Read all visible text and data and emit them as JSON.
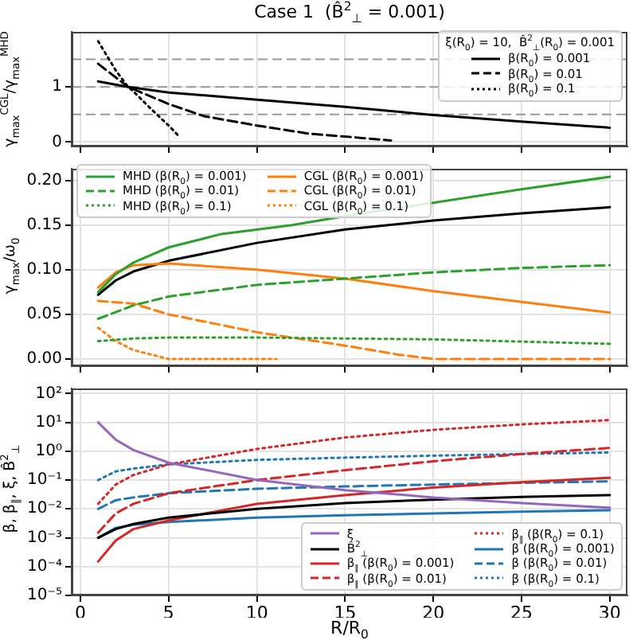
{
  "chart_data": [
    {
      "type": "line",
      "title": "Case 1  (B̂$^{2}$$_{⊥}$ = 0.001)",
      "ylabel": "γ$_{max}$$^{CGL}$/γ$_{max}$$^{MHD}$",
      "legend_title": "ξ(R$_{0}$) = 10,  B̂$^{2}$$_{⊥}$(R$_{0}$) = 0.001",
      "legend": "top right",
      "grid": true,
      "tick_labels": "y",
      "xlim": [
        -0.5,
        31
      ],
      "xticks": [
        0,
        5,
        10,
        15,
        20,
        25,
        30
      ],
      "ylim": [
        -0.08,
        2.0
      ],
      "yticks": [
        0,
        1
      ],
      "ref_lines": [
        {
          "axis": "y",
          "value": 0.5,
          "color": "#999999",
          "line_style": "dashed"
        },
        {
          "axis": "y",
          "value": 1,
          "color": "#999999",
          "line_style": "dashed"
        },
        {
          "axis": "y",
          "value": 1.5,
          "color": "#999999",
          "line_style": "dashed"
        }
      ],
      "series": [
        {
          "name": "β(R$_{0}$) = 0.001",
          "color": "#000000",
          "line_style": "solid",
          "x": [
            1,
            2.7,
            5,
            10,
            15,
            20,
            25,
            30
          ],
          "values": [
            1.1,
            1.0,
            0.9,
            0.77,
            0.64,
            0.49,
            0.37,
            0.26
          ]
        },
        {
          "name": "β(R$_{0}$) = 0.01",
          "color": "#000000",
          "line_style": "dashed",
          "x": [
            1,
            2.7,
            5,
            7,
            10,
            13,
            15,
            17.6
          ],
          "values": [
            1.42,
            1.0,
            0.69,
            0.47,
            0.3,
            0.15,
            0.1,
            0.03
          ]
        },
        {
          "name": "β(R$_{0}$) = 0.1",
          "color": "#000000",
          "line_style": "dotted",
          "x": [
            1,
            2,
            2.7,
            3,
            4,
            5,
            5.6
          ],
          "values": [
            1.83,
            1.3,
            1.0,
            0.92,
            0.6,
            0.3,
            0.1
          ]
        }
      ]
    },
    {
      "type": "line",
      "ylabel": "γ$_{max}$/ω$_{0}$",
      "legend": "top left",
      "grid": true,
      "tick_labels": "y",
      "xlim": [
        -0.5,
        31
      ],
      "xticks": [
        0,
        5,
        10,
        15,
        20,
        25,
        30
      ],
      "ylim": [
        -0.008,
        0.213
      ],
      "yticks": [
        {
          "value": 0,
          "label": "0.00"
        },
        {
          "value": 0.05,
          "label": "0.05"
        },
        {
          "value": 0.1,
          "label": "0.10"
        },
        {
          "value": 0.15,
          "label": "0.15"
        },
        {
          "value": 0.2,
          "label": "0.20"
        }
      ],
      "series": [
        {
          "name": "MHD (β(R$_{0}$) = 0.001)",
          "color": "#2ca02c",
          "line_style": "solid",
          "x": [
            1,
            2,
            3,
            5,
            8,
            12,
            15,
            20,
            25,
            30
          ],
          "values": [
            0.075,
            0.095,
            0.108,
            0.125,
            0.14,
            0.15,
            0.16,
            0.175,
            0.19,
            0.204
          ]
        },
        {
          "name": "MHD (β(R$_{0}$) = 0.01)",
          "color": "#2ca02c",
          "line_style": "dashed",
          "x": [
            1,
            3,
            5,
            10,
            15,
            20,
            25,
            30
          ],
          "values": [
            0.045,
            0.06,
            0.07,
            0.083,
            0.09,
            0.097,
            0.102,
            0.105
          ]
        },
        {
          "name": "MHD (β(R$_{0}$) = 0.1)",
          "color": "#2ca02c",
          "line_style": "dotted",
          "x": [
            1,
            3,
            5,
            10,
            20,
            30
          ],
          "values": [
            0.02,
            0.023,
            0.024,
            0.024,
            0.022,
            0.017
          ]
        },
        {
          "name": "CGL (β(R$_{0}$) = 0.001)",
          "color": "#ff7f0e",
          "line_style": "solid",
          "x": [
            1,
            2,
            3,
            5,
            10,
            15,
            20,
            25,
            30
          ],
          "values": [
            0.08,
            0.097,
            0.105,
            0.107,
            0.1,
            0.09,
            0.076,
            0.064,
            0.052
          ]
        },
        {
          "name": "CGL (β(R$_{0}$) = 0.01)",
          "color": "#ff7f0e",
          "line_style": "dashed",
          "x": [
            1,
            3,
            5,
            10,
            15,
            18,
            20,
            30
          ],
          "values": [
            0.065,
            0.062,
            0.05,
            0.03,
            0.015,
            0.005,
            0,
            0
          ]
        },
        {
          "name": "CGL (β(R$_{0}$) = 0.1)",
          "color": "#ff7f0e",
          "line_style": "dotted",
          "x": [
            1,
            2,
            3,
            5,
            11.1
          ],
          "values": [
            0.035,
            0.02,
            0.01,
            0,
            0
          ]
        },
        {
          "color": "#000000",
          "line_style": "solid",
          "x": [
            1,
            2,
            3,
            5,
            10,
            15,
            20,
            25,
            30
          ],
          "values": [
            0.072,
            0.088,
            0.098,
            0.11,
            0.13,
            0.145,
            0.155,
            0.163,
            0.17
          ]
        }
      ]
    },
    {
      "type": "line",
      "xlabel": "R/R$_{0}$",
      "ylabel": "β, β$_{∥}$, ξ, B̂$^{2}$$_{⊥}$",
      "legend": "bottom right",
      "grid": true,
      "log": "y",
      "xlim": [
        -0.5,
        31
      ],
      "xticks": [
        0,
        5,
        10,
        15,
        20,
        25,
        30
      ],
      "ylim": [
        1e-05,
        150
      ],
      "yticks": [
        {
          "value": 100,
          "label": "10²"
        },
        {
          "value": 10,
          "label": "10¹"
        },
        {
          "value": 1,
          "label": "10⁰"
        },
        {
          "value": 0.1,
          "label": "10⁻¹"
        },
        {
          "value": 0.01,
          "label": "10⁻²"
        },
        {
          "value": 0.001,
          "label": "10⁻³"
        },
        {
          "value": 0.0001,
          "label": "10⁻⁴"
        },
        {
          "value": 1e-05,
          "label": "10⁻⁵"
        }
      ],
      "series": [
        {
          "name": "ξ",
          "color": "#9467bd",
          "line_style": "solid",
          "x": [
            1,
            2,
            3,
            5,
            10,
            15,
            20,
            25,
            30
          ],
          "values": [
            10,
            2.5,
            1.1,
            0.4,
            0.1,
            0.045,
            0.025,
            0.016,
            0.011
          ]
        },
        {
          "name": "B̂$^{2}$$_{⊥}$",
          "color": "#000000",
          "line_style": "solid",
          "x": [
            1,
            2,
            3,
            5,
            10,
            15,
            20,
            25,
            30
          ],
          "values": [
            0.001,
            0.002,
            0.003,
            0.005,
            0.01,
            0.016,
            0.021,
            0.026,
            0.03
          ]
        },
        {
          "name": "β$_{∥}$ (β(R$_{0}$) = 0.001)",
          "color": "#d62728",
          "line_style": "solid",
          "x": [
            1,
            2,
            3,
            5,
            10,
            15,
            20,
            25,
            30
          ],
          "values": [
            0.00015,
            0.0008,
            0.002,
            0.004,
            0.015,
            0.03,
            0.055,
            0.085,
            0.12
          ]
        },
        {
          "name": "β$_{∥}$ (β(R$_{0}$) = 0.01)",
          "color": "#d62728",
          "line_style": "dashed",
          "x": [
            1,
            2,
            3,
            5,
            10,
            15,
            20,
            25,
            30
          ],
          "values": [
            0.0015,
            0.007,
            0.015,
            0.035,
            0.1,
            0.22,
            0.45,
            0.8,
            1.3
          ]
        },
        {
          "name": "β$_{∥}$ (β(R$_{0}$) = 0.1)",
          "color": "#d62728",
          "line_style": "dotted",
          "x": [
            1,
            2,
            3,
            5,
            10,
            15,
            20,
            25,
            30
          ],
          "values": [
            0.015,
            0.07,
            0.15,
            0.35,
            1.2,
            3,
            5.5,
            8.5,
            12
          ]
        },
        {
          "name": "β (β(R$_{0}$) = 0.001)",
          "color": "#1f77b4",
          "line_style": "solid",
          "x": [
            1,
            2,
            3,
            5,
            10,
            15,
            20,
            25,
            30
          ],
          "values": [
            0.001,
            0.0022,
            0.0028,
            0.0035,
            0.005,
            0.006,
            0.007,
            0.008,
            0.009
          ]
        },
        {
          "name": "β (β(R$_{0}$) = 0.01)",
          "color": "#1f77b4",
          "line_style": "dashed",
          "x": [
            1,
            2,
            3,
            5,
            10,
            15,
            20,
            25,
            30
          ],
          "values": [
            0.01,
            0.02,
            0.025,
            0.035,
            0.05,
            0.06,
            0.07,
            0.08,
            0.09
          ]
        },
        {
          "name": "β (β(R$_{0}$) = 0.1)",
          "color": "#1f77b4",
          "line_style": "dotted",
          "x": [
            1,
            2,
            3,
            5,
            10,
            15,
            20,
            25,
            30
          ],
          "values": [
            0.1,
            0.2,
            0.25,
            0.35,
            0.5,
            0.6,
            0.7,
            0.8,
            0.9
          ]
        }
      ]
    }
  ]
}
